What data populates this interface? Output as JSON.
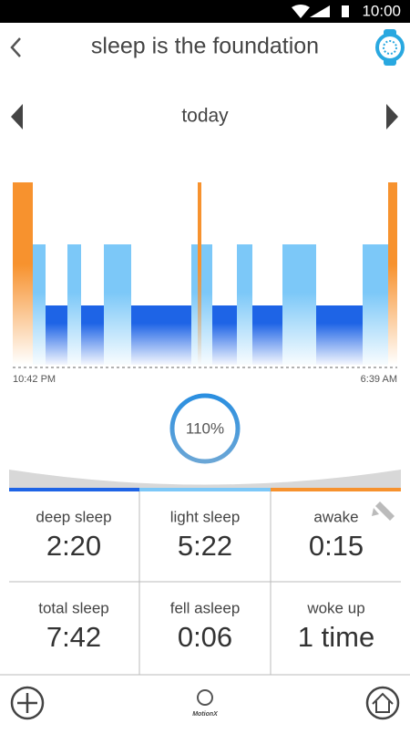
{
  "status_bar": {
    "time": "10:00"
  },
  "header": {
    "title": "sleep is the foundation"
  },
  "date_nav": {
    "label": "today"
  },
  "chart": {
    "start_time": "10:42 PM",
    "end_time": "6:39 AM"
  },
  "score": {
    "label": "110%"
  },
  "stats": {
    "rows": [
      [
        {
          "label": "deep sleep",
          "value": "2:20"
        },
        {
          "label": "light sleep",
          "value": "5:22"
        },
        {
          "label": "awake",
          "value": "0:15"
        }
      ],
      [
        {
          "label": "total sleep",
          "value": "7:42"
        },
        {
          "label": "fell asleep",
          "value": "0:06"
        },
        {
          "label": "woke up",
          "value": "1 time"
        }
      ]
    ]
  },
  "footer": {
    "brand": "MotionX"
  }
}
